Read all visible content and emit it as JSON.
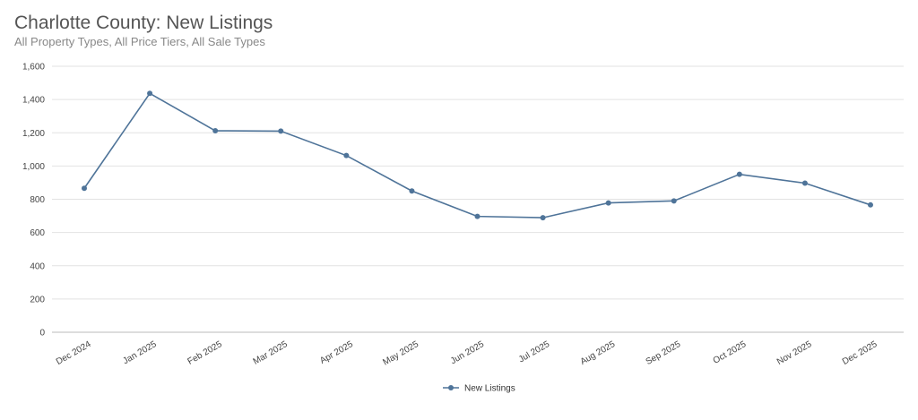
{
  "chart_data": {
    "type": "line",
    "title": "Charlotte County: New Listings",
    "subtitle": "All Property Types, All Price Tiers, All Sale Types",
    "categories": [
      "Dec 2024",
      "Jan 2025",
      "Feb 2025",
      "Mar 2025",
      "Apr 2025",
      "May 2025",
      "Jun 2025",
      "Jul 2025",
      "Aug 2025",
      "Sep 2025",
      "Oct 2025",
      "Nov 2025",
      "Dec 2025"
    ],
    "series": [
      {
        "name": "New Listings",
        "color": "#4f7499",
        "values": [
          866,
          1437,
          1212,
          1210,
          1063,
          850,
          697,
          689,
          778,
          790,
          950,
          897,
          766
        ]
      }
    ],
    "yticks": [
      "0",
      "200",
      "400",
      "600",
      "800",
      "1,000",
      "1,200",
      "1,400",
      "1,600"
    ],
    "ylim": [
      0,
      1600
    ],
    "grid": true,
    "legend_position": "bottom-center"
  }
}
